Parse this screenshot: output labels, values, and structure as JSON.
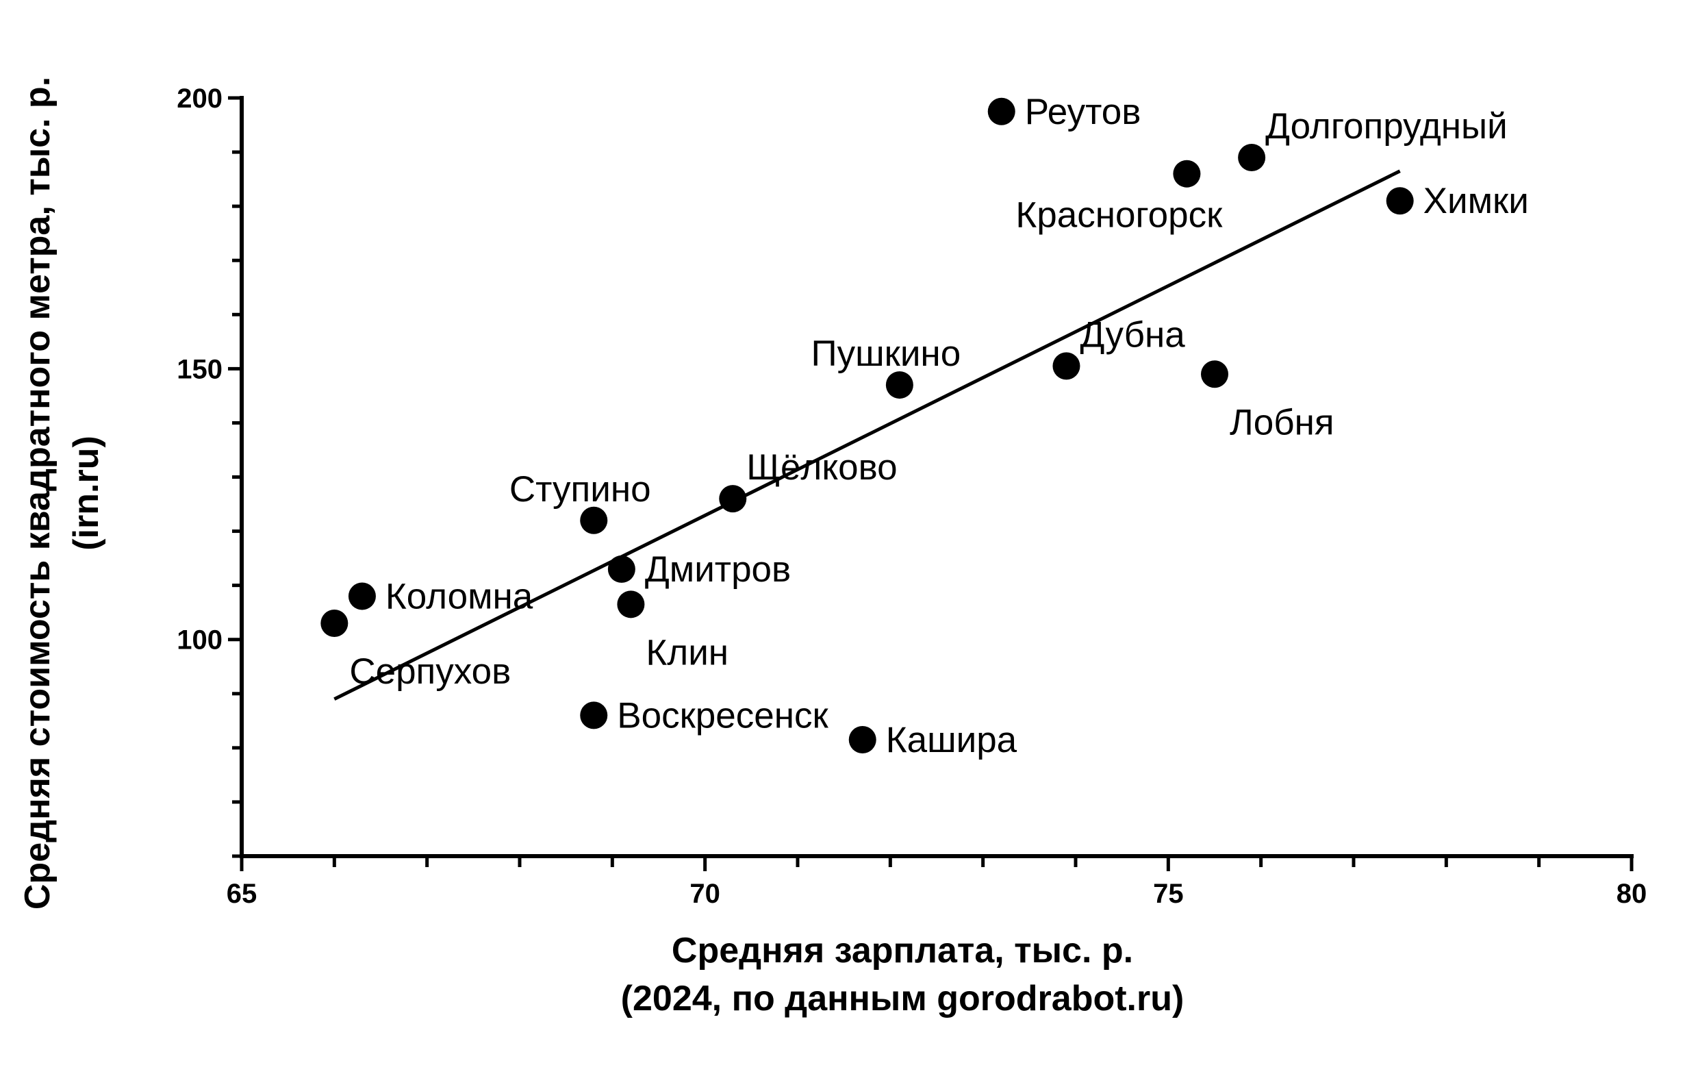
{
  "chart_data": {
    "type": "scatter",
    "title": "",
    "xlabel": [
      "Средняя зарплата, тыс. р.",
      "(2024, по данным gorodrabot.ru)"
    ],
    "ylabel": [
      "Средняя стоимость квадратного метра, тыс. р.",
      "(irn.ru)"
    ],
    "xlim": [
      65,
      80
    ],
    "ylim": [
      60,
      200
    ],
    "x_ticks_labeled": [
      65,
      70,
      75,
      80
    ],
    "x_tick_labels": [
      "65",
      "70",
      "75",
      "80"
    ],
    "x_minor_step": 1,
    "y_ticks_labeled": [
      100,
      150,
      200
    ],
    "y_tick_labels": [
      "100",
      "150",
      "200"
    ],
    "y_minor_step": 10,
    "grid": false,
    "points": [
      {
        "name": "Реутов",
        "x": 73.2,
        "y": 197.5,
        "label_pos": "right"
      },
      {
        "name": "Долгопрудный",
        "x": 75.9,
        "y": 189,
        "label_pos": "upper-right"
      },
      {
        "name": "Красногорск",
        "x": 75.2,
        "y": 186,
        "label_pos": "below-left"
      },
      {
        "name": "Химки",
        "x": 77.5,
        "y": 181,
        "label_pos": "right"
      },
      {
        "name": "Дубна",
        "x": 73.9,
        "y": 150.5,
        "label_pos": "upper-right"
      },
      {
        "name": "Пушкино",
        "x": 72.1,
        "y": 147,
        "label_pos": "above"
      },
      {
        "name": "Лобня",
        "x": 75.5,
        "y": 149,
        "label_pos": "below-right"
      },
      {
        "name": "Щёлково",
        "x": 70.3,
        "y": 126,
        "label_pos": "upper-right"
      },
      {
        "name": "Ступино",
        "x": 68.8,
        "y": 122,
        "label_pos": "above"
      },
      {
        "name": "Дмитров",
        "x": 69.1,
        "y": 113,
        "label_pos": "right"
      },
      {
        "name": "Клин",
        "x": 69.2,
        "y": 106.5,
        "label_pos": "below-right"
      },
      {
        "name": "Коломна",
        "x": 66.3,
        "y": 108,
        "label_pos": "right"
      },
      {
        "name": "Серпухов",
        "x": 66.0,
        "y": 103,
        "label_pos": "below-right"
      },
      {
        "name": "Воскресенск",
        "x": 68.8,
        "y": 86,
        "label_pos": "right"
      },
      {
        "name": "Кашира",
        "x": 71.7,
        "y": 81.5,
        "label_pos": "right"
      }
    ],
    "trendline": {
      "x": [
        66.0,
        77.5
      ],
      "y": [
        89,
        186.5
      ]
    }
  }
}
